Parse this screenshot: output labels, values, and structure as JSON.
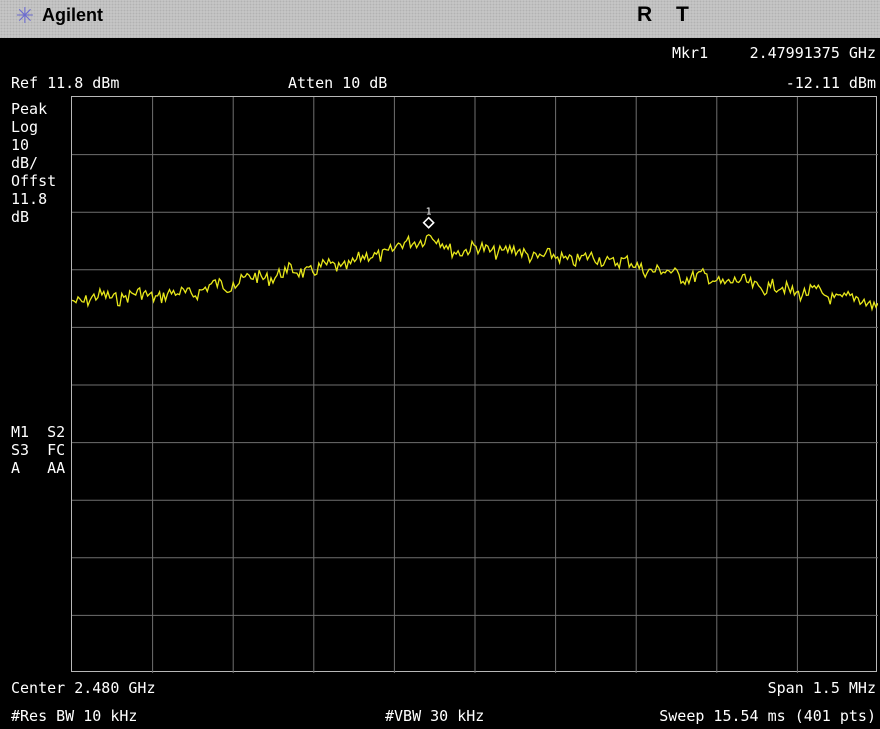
{
  "title_bar": {
    "logo_icon": "agilent-spark-icon",
    "brand": "Agilent",
    "status_r": "R",
    "status_t": "T"
  },
  "header": {
    "marker_label": "Mkr1",
    "marker_freq": "2.47991375 GHz",
    "ref_level": "Ref 11.8 dBm",
    "atten": "Atten 10 dB",
    "marker_amp": "-12.11 dBm"
  },
  "left_panel": {
    "lines": [
      "Peak",
      "Log",
      "10",
      "dB/",
      "Offst",
      "11.8",
      "dB"
    ],
    "flags": [
      "M1  S2",
      "S3  FC",
      "A   AA"
    ]
  },
  "marker": {
    "number": "1"
  },
  "footer": {
    "center": "Center 2.480 GHz",
    "span": "Span 1.5 MHz",
    "res_bw": "#Res BW 10 kHz",
    "vbw": "#VBW 30 kHz",
    "sweep": "Sweep 15.54 ms (401 pts)"
  },
  "chart_data": {
    "type": "line",
    "x_unit": "GHz",
    "y_unit": "dBm",
    "xlim": [
      2.47925,
      2.48075
    ],
    "ylim": [
      -88.2,
      11.8
    ],
    "y_div": 10,
    "x_divisions": 10,
    "y_divisions": 10,
    "grid": true,
    "trace_color": "#e8e81a",
    "series": [
      {
        "x": [
          2.47925,
          2.47935,
          2.47945,
          2.47955,
          2.47965,
          2.47975,
          2.47985,
          2.47991375,
          2.47995,
          2.48005,
          2.48015,
          2.48025,
          2.48035,
          2.48045,
          2.48055,
          2.48065,
          2.48075
        ],
        "values": [
          -23.5,
          -22.7,
          -22.5,
          -20.4,
          -18.7,
          -17.6,
          -14.6,
          -12.1,
          -14.6,
          -14.8,
          -16.2,
          -16.4,
          -18.6,
          -20.0,
          -21.2,
          -22.6,
          -24.0
        ]
      }
    ],
    "markers": [
      {
        "label": "1",
        "x": 2.47991375,
        "y": -12.11
      }
    ]
  }
}
